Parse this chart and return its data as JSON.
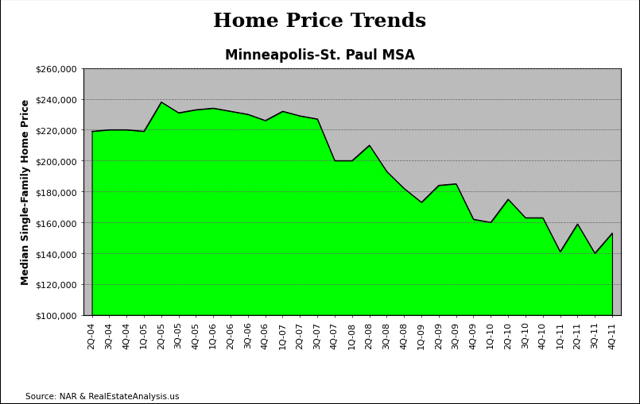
{
  "title": "Home Price Trends",
  "subtitle": "Minneapolis-St. Paul MSA",
  "ylabel": "Median Single-Family Home Price",
  "source": "Source: NAR & RealEstateAnalysis.us",
  "ylim": [
    100000,
    260000
  ],
  "yticks": [
    100000,
    120000,
    140000,
    160000,
    180000,
    200000,
    220000,
    240000,
    260000
  ],
  "fill_color": "#00ff00",
  "fill_edge_color": "#000000",
  "plot_bg_color": "#aaaaaa",
  "x_labels": [
    "2Q-04",
    "3Q-04",
    "4Q-04",
    "1Q-05",
    "2Q-05",
    "3Q-05",
    "4Q-05",
    "1Q-06",
    "2Q-06",
    "3Q-06",
    "4Q-06",
    "1Q-07",
    "2Q-07",
    "3Q-07",
    "4Q-07",
    "1Q-08",
    "2Q-08",
    "3Q-08",
    "4Q-08",
    "1Q-09",
    "2Q-09",
    "3Q-09",
    "4Q-09",
    "1Q-10",
    "2Q-10",
    "3Q-10",
    "4Q-10",
    "1Q-11",
    "2Q-11",
    "3Q-11",
    "4Q-11"
  ],
  "values": [
    219000,
    220000,
    220000,
    219000,
    238000,
    231000,
    233000,
    234000,
    232000,
    230000,
    226000,
    232000,
    229000,
    227000,
    200000,
    200000,
    210000,
    193000,
    182000,
    173000,
    184000,
    185000,
    162000,
    160000,
    175000,
    163000,
    163000,
    141000,
    159000,
    140000,
    153000
  ],
  "title_fontsize": 18,
  "subtitle_fontsize": 12,
  "tick_fontsize": 8,
  "ylabel_fontsize": 9
}
